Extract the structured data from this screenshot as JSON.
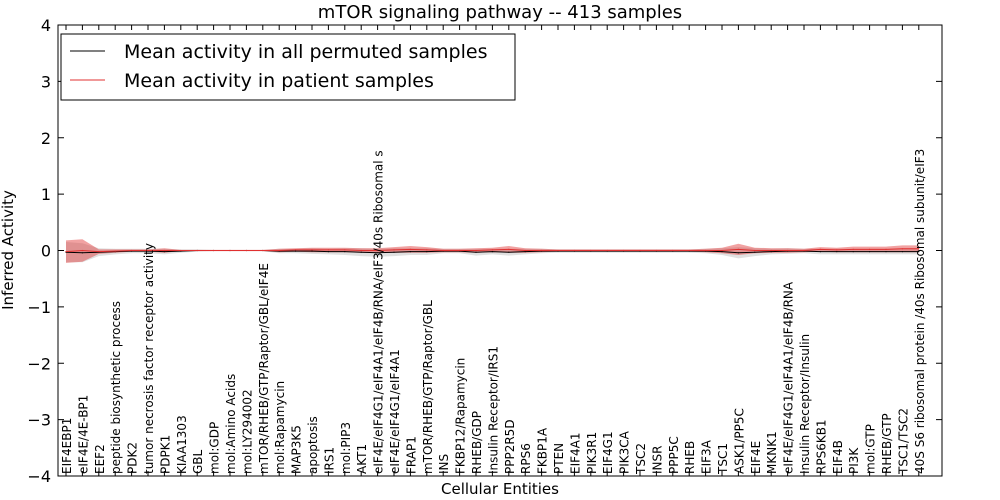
{
  "chart_data": {
    "type": "line",
    "title": "mTOR signaling pathway -- 413 samples",
    "xlabel": "Cellular Entities",
    "ylabel": "Inferred Activity",
    "ylim": [
      -4,
      4
    ],
    "yticks": [
      -4,
      -3,
      -2,
      -1,
      0,
      1,
      2,
      3,
      4
    ],
    "ytick_labels": [
      "−4",
      "−3",
      "−2",
      "−1",
      "0",
      "1",
      "2",
      "3",
      "4"
    ],
    "grid": false,
    "legend_position": "top-left",
    "categories": [
      "EIF4EBP1",
      "eIF4E/4E-BP1",
      "EEF2",
      "peptide biosynthetic process",
      "PDK2",
      "tumor necrosis factor receptor activity",
      "PDPK1",
      "KIAA1303",
      "GBL",
      "mol:GDP",
      "mol:Amino Acids",
      "mol:LY294002",
      "mTOR/RHEB/GTP/Raptor/GBL/eIF4E",
      "mol:Rapamycin",
      "MAP3K5",
      "apoptosis",
      "IRS1",
      "mol:PIP3",
      "AKT1",
      "eIF4E/eIF4G1/eIF4A1/eIF4B/RNA/eIF3/40s Ribosomal s",
      "eIF4E/eIF4G1/eIF4A1",
      "FRAP1",
      "mTOR/RHEB/GTP/Raptor/GBL",
      "INS",
      "FKBP12/Rapamycin",
      "RHEB/GDP",
      "Insulin Receptor/IRS1",
      "PPP2R5D",
      "RPS6",
      "FKBP1A",
      "PTEN",
      "EIF4A1",
      "PIK3R1",
      "EIF4G1",
      "PIK3CA",
      "TSC2",
      "INSR",
      "PPP5C",
      "RHEB",
      "EIF3A",
      "TSC1",
      "ASK1/PP5C",
      "EIF4E",
      "MKNK1",
      "eIF4E/eIF4G1/eIF4A1/eIF4B/RNA",
      "Insulin Receptor/Insulin",
      "RPS6KB1",
      "EIF4B",
      "PI3K",
      "mol:GTP",
      "RHEB/GTP",
      "TSC1/TSC2",
      "40S S6 ribosomal protein /40s Ribosomal subunit/eIF3"
    ],
    "series": [
      {
        "name": "Mean activity in all permuted samples",
        "color": "#000000",
        "values": [
          -0.03,
          -0.04,
          -0.03,
          -0.02,
          -0.01,
          -0.01,
          -0.02,
          -0.01,
          0.0,
          0.0,
          0.0,
          0.0,
          0.0,
          -0.01,
          -0.01,
          -0.01,
          -0.02,
          -0.02,
          -0.03,
          -0.04,
          -0.03,
          -0.02,
          -0.02,
          -0.01,
          -0.01,
          -0.03,
          -0.02,
          -0.03,
          -0.02,
          -0.01,
          -0.01,
          -0.01,
          -0.01,
          -0.01,
          -0.01,
          -0.01,
          -0.01,
          -0.01,
          -0.01,
          -0.01,
          -0.02,
          -0.04,
          -0.03,
          -0.02,
          -0.01,
          -0.01,
          -0.02,
          -0.02,
          -0.02,
          -0.02,
          -0.02,
          -0.02,
          -0.02
        ],
        "band": [
          0.18,
          0.17,
          0.07,
          0.05,
          0.04,
          0.04,
          0.05,
          0.03,
          0.02,
          0.01,
          0.01,
          0.01,
          0.01,
          0.04,
          0.04,
          0.05,
          0.05,
          0.06,
          0.07,
          0.07,
          0.07,
          0.06,
          0.06,
          0.04,
          0.04,
          0.06,
          0.05,
          0.06,
          0.05,
          0.04,
          0.03,
          0.03,
          0.03,
          0.03,
          0.03,
          0.03,
          0.03,
          0.03,
          0.03,
          0.04,
          0.06,
          0.1,
          0.07,
          0.05,
          0.05,
          0.04,
          0.05,
          0.05,
          0.05,
          0.05,
          0.05,
          0.05,
          0.05
        ]
      },
      {
        "name": "Mean activity in patient samples",
        "color": "#e03030",
        "values": [
          -0.02,
          0.0,
          -0.02,
          -0.01,
          0.0,
          0.0,
          0.0,
          0.0,
          0.0,
          0.0,
          0.0,
          0.0,
          0.0,
          0.0,
          0.01,
          0.01,
          0.01,
          0.01,
          0.0,
          0.0,
          0.01,
          0.02,
          0.01,
          0.0,
          0.0,
          0.0,
          0.01,
          0.02,
          0.0,
          0.0,
          0.0,
          0.0,
          0.0,
          0.0,
          0.0,
          0.0,
          0.0,
          0.0,
          0.0,
          0.0,
          0.0,
          0.02,
          0.0,
          0.0,
          0.0,
          0.0,
          0.02,
          0.01,
          0.02,
          0.02,
          0.02,
          0.03,
          0.03
        ],
        "band": [
          0.2,
          0.2,
          0.04,
          0.03,
          0.02,
          0.02,
          0.04,
          0.01,
          0.01,
          0.01,
          0.01,
          0.01,
          0.01,
          0.03,
          0.03,
          0.04,
          0.04,
          0.04,
          0.04,
          0.04,
          0.05,
          0.06,
          0.05,
          0.03,
          0.03,
          0.04,
          0.04,
          0.06,
          0.04,
          0.03,
          0.02,
          0.02,
          0.02,
          0.02,
          0.02,
          0.02,
          0.02,
          0.02,
          0.02,
          0.03,
          0.05,
          0.1,
          0.05,
          0.04,
          0.04,
          0.03,
          0.04,
          0.04,
          0.05,
          0.05,
          0.05,
          0.06,
          0.06
        ]
      }
    ]
  }
}
